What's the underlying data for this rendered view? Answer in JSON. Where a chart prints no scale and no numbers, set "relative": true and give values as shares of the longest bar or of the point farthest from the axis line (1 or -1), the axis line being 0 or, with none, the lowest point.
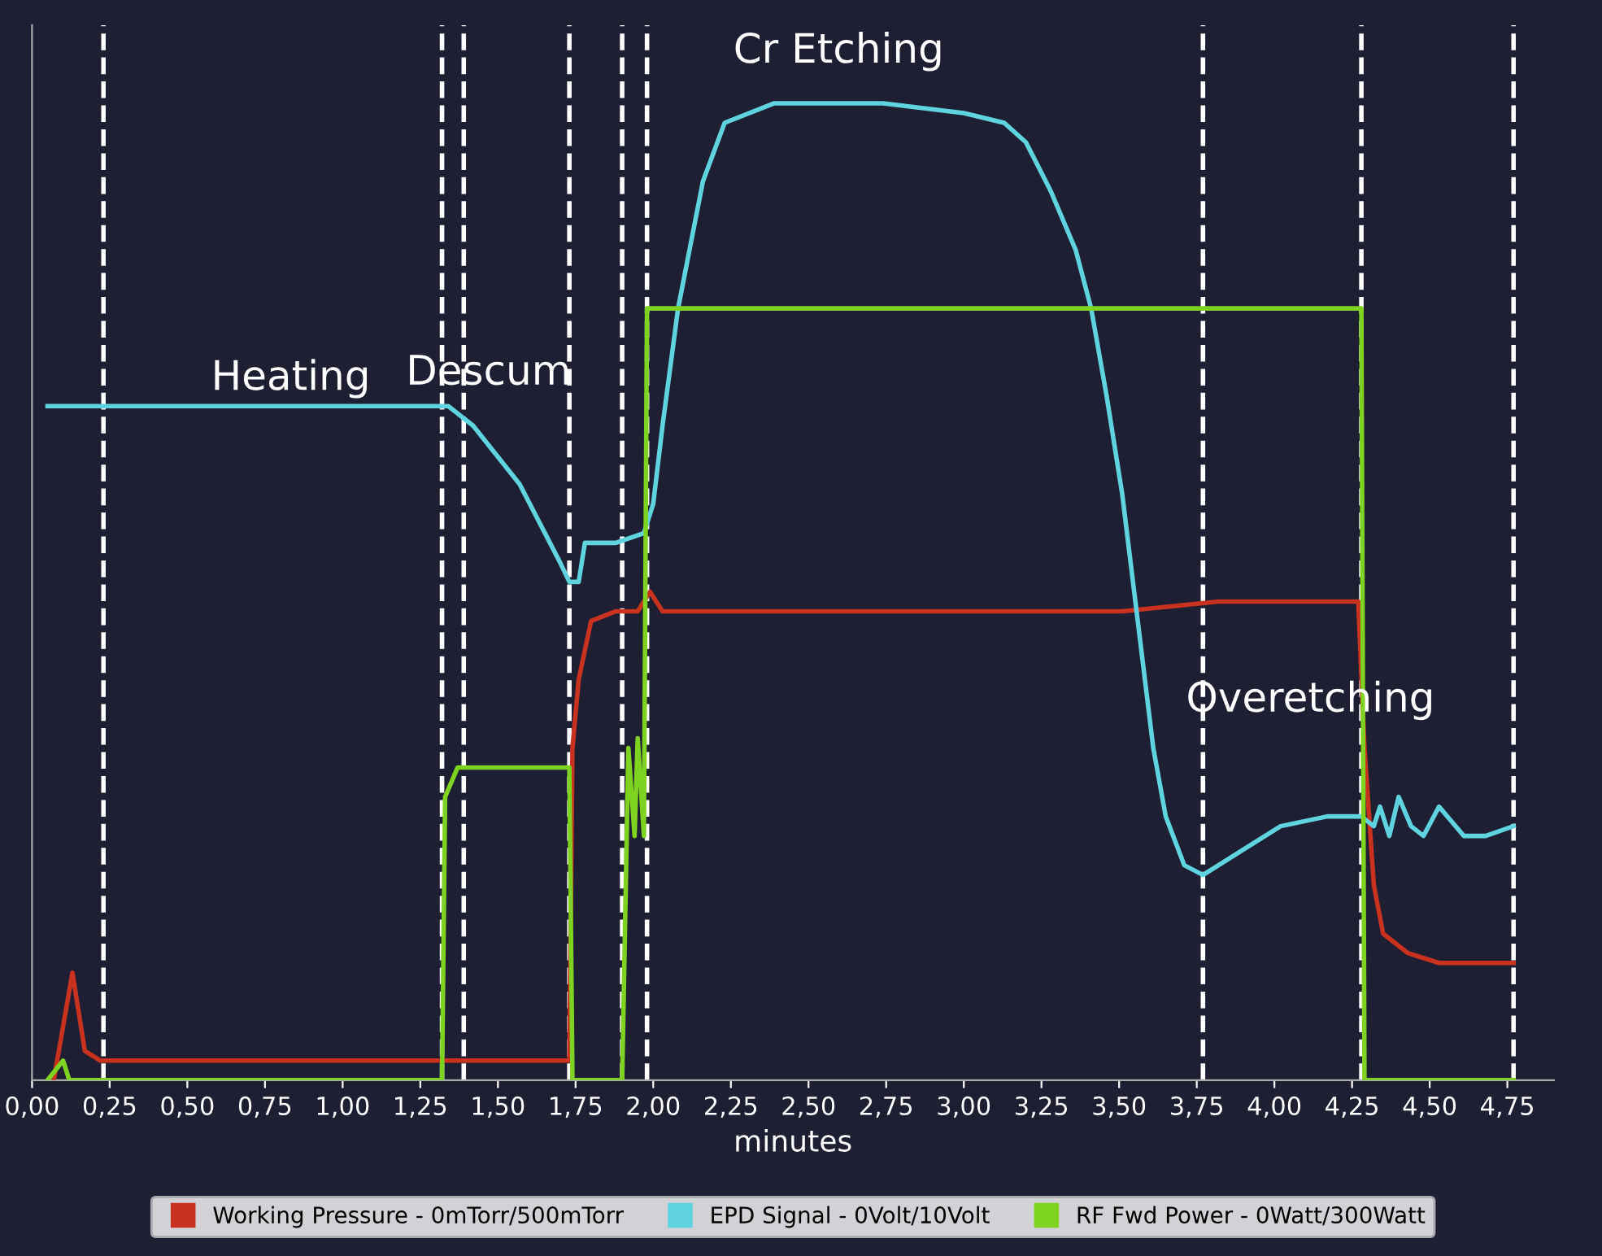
{
  "chart_data": {
    "type": "line",
    "relative": true,
    "xlabel": "minutes",
    "xlim": [
      0,
      4.9
    ],
    "xticks": [
      {
        "value": 0,
        "label": "0,00"
      },
      {
        "value": 0.25,
        "label": "0,25"
      },
      {
        "value": 0.5,
        "label": "0,50"
      },
      {
        "value": 0.75,
        "label": "0,75"
      },
      {
        "value": 1,
        "label": "1,00"
      },
      {
        "value": 1.25,
        "label": "1,25"
      },
      {
        "value": 1.5,
        "label": "1,50"
      },
      {
        "value": 1.75,
        "label": "1,75"
      },
      {
        "value": 2,
        "label": "2,00"
      },
      {
        "value": 2.25,
        "label": "2,25"
      },
      {
        "value": 2.5,
        "label": "2,50"
      },
      {
        "value": 2.75,
        "label": "2,75"
      },
      {
        "value": 3,
        "label": "3,00"
      },
      {
        "value": 3.25,
        "label": "3,25"
      },
      {
        "value": 3.5,
        "label": "3,50"
      },
      {
        "value": 3.75,
        "label": "3,75"
      },
      {
        "value": 4,
        "label": "4,00"
      },
      {
        "value": 4.25,
        "label": "4,25"
      },
      {
        "value": 4.5,
        "label": "4,50"
      },
      {
        "value": 4.75,
        "label": "4,75"
      }
    ],
    "tick_labels": "x",
    "grid": false,
    "legend": "bottom",
    "line_style": "solid",
    "marker": "none",
    "series": [
      {
        "name": "Working Pressure - 0mTorr/500mTorr",
        "color": "#c8321e",
        "x": [
          0.07,
          0.13,
          0.17,
          0.22,
          1.73,
          1.74,
          1.76,
          1.8,
          1.88,
          1.95,
          1.99,
          2.03,
          2.13,
          3.0,
          3.51,
          3.82,
          4.27,
          4.29,
          4.32,
          4.35,
          4.43,
          4.53,
          4.77
        ],
        "values": [
          0,
          0.11,
          0.03,
          0.02,
          0.02,
          0.34,
          0.41,
          0.47,
          0.48,
          0.48,
          0.5,
          0.48,
          0.48,
          0.48,
          0.48,
          0.49,
          0.49,
          0.34,
          0.2,
          0.15,
          0.13,
          0.12,
          0.12
        ]
      },
      {
        "name": "EPD Signal - 0Volt/10Volt",
        "color": "#5fd3e0",
        "x": [
          0.05,
          1.34,
          1.42,
          1.57,
          1.7,
          1.73,
          1.76,
          1.78,
          1.88,
          1.97,
          2.0,
          2.03,
          2.08,
          2.16,
          2.23,
          2.39,
          2.74,
          3.0,
          3.13,
          3.2,
          3.28,
          3.36,
          3.41,
          3.46,
          3.51,
          3.56,
          3.61,
          3.65,
          3.71,
          3.77,
          3.87,
          4.02,
          4.17,
          4.28,
          4.32,
          4.34,
          4.37,
          4.4,
          4.44,
          4.48,
          4.53,
          4.61,
          4.68,
          4.77
        ],
        "values": [
          0.69,
          0.69,
          0.67,
          0.61,
          0.53,
          0.51,
          0.51,
          0.55,
          0.55,
          0.56,
          0.59,
          0.67,
          0.79,
          0.92,
          0.98,
          1.0,
          1.0,
          0.99,
          0.98,
          0.96,
          0.91,
          0.85,
          0.79,
          0.7,
          0.6,
          0.47,
          0.34,
          0.27,
          0.22,
          0.21,
          0.23,
          0.26,
          0.27,
          0.27,
          0.26,
          0.28,
          0.25,
          0.29,
          0.26,
          0.25,
          0.28,
          0.25,
          0.25,
          0.26
        ]
      },
      {
        "name": "RF Fwd Power - 0Watt/300Watt",
        "color": "#7ed321",
        "x": [
          0.05,
          0.1,
          0.12,
          1.32,
          1.33,
          1.37,
          1.73,
          1.74,
          1.9,
          1.92,
          1.94,
          1.95,
          1.97,
          1.98,
          4.28,
          4.29,
          4.77
        ],
        "values": [
          0,
          0.02,
          0,
          0,
          0.29,
          0.32,
          0.32,
          0,
          0,
          0.34,
          0.25,
          0.35,
          0.25,
          0.79,
          0.79,
          0,
          0
        ]
      }
    ],
    "ref_lines": [
      {
        "axis": "x",
        "value": 0.23,
        "color": "#ffffff",
        "line_style": "dashed"
      },
      {
        "axis": "x",
        "value": 1.32,
        "color": "#ffffff",
        "line_style": "dashed"
      },
      {
        "axis": "x",
        "value": 1.39,
        "color": "#ffffff",
        "line_style": "dashed"
      },
      {
        "axis": "x",
        "value": 1.73,
        "color": "#ffffff",
        "line_style": "dashed"
      },
      {
        "axis": "x",
        "value": 1.9,
        "color": "#ffffff",
        "line_style": "dashed"
      },
      {
        "axis": "x",
        "value": 1.98,
        "color": "#ffffff",
        "line_style": "dashed"
      },
      {
        "axis": "x",
        "value": 3.77,
        "color": "#ffffff",
        "line_style": "dashed"
      },
      {
        "axis": "x",
        "value": 4.28,
        "color": "#ffffff",
        "line_style": "dashed"
      },
      {
        "axis": "x",
        "value": 4.77,
        "color": "#ffffff",
        "line_style": "dashed"
      }
    ],
    "annotations": [
      "Heating",
      "Descum",
      "Cr Etching",
      "Overetching"
    ]
  }
}
